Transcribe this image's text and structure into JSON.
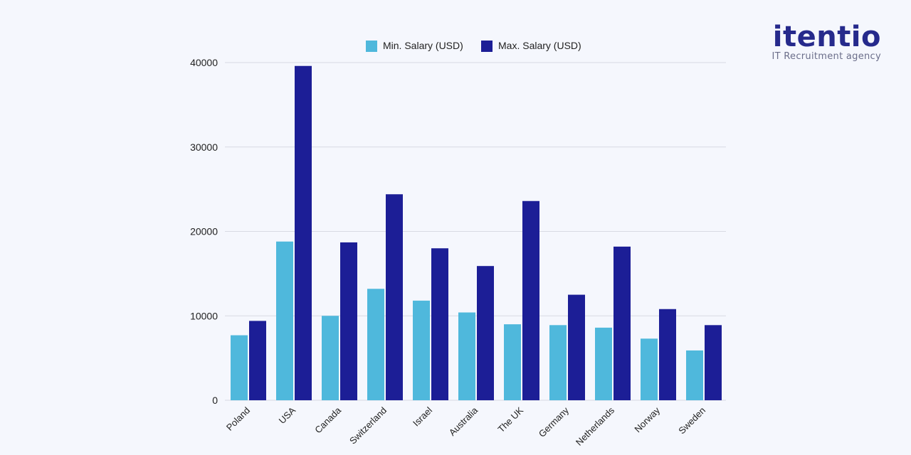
{
  "brand": {
    "name": "itentio",
    "tagline": "IT Recruitment agency"
  },
  "chart_data": {
    "type": "bar",
    "title": "",
    "xlabel": "",
    "ylabel": "",
    "categories": [
      "Poland",
      "USA",
      "Canada",
      "Switzerland",
      "Israel",
      "Australia",
      "The UK",
      "Germany",
      "Netherlands",
      "Norway",
      "Sweden"
    ],
    "series": [
      {
        "name": "Min. Salary (USD)",
        "color": "#4fb8dc",
        "values": [
          7700,
          18800,
          10000,
          13200,
          11800,
          10400,
          9000,
          8900,
          8600,
          7300,
          5900
        ]
      },
      {
        "name": "Max. Salary (USD)",
        "color": "#1c1e96",
        "values": [
          9400,
          39600,
          18700,
          24400,
          18000,
          15900,
          23600,
          12500,
          18200,
          10800,
          8900
        ]
      }
    ],
    "ylim": [
      0,
      40000
    ],
    "yticks": [
      0,
      10000,
      20000,
      30000,
      40000
    ],
    "grid": true,
    "legend": "top-center"
  }
}
